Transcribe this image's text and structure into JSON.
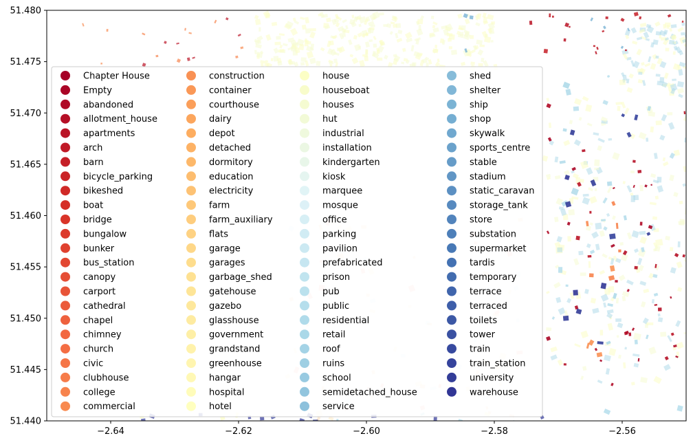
{
  "chart_data": {
    "type": "scatter",
    "title": "",
    "xlabel": "",
    "ylabel": "",
    "xlim": [
      -2.65,
      -2.55
    ],
    "ylim": [
      51.44,
      51.48
    ],
    "xticks": [
      -2.64,
      -2.62,
      -2.6,
      -2.58,
      -2.56
    ],
    "yticks": [
      51.44,
      51.445,
      51.45,
      51.455,
      51.46,
      51.465,
      51.47,
      51.475,
      51.48
    ],
    "xtick_labels": [
      "−2.64",
      "−2.62",
      "−2.60",
      "−2.58",
      "−2.56"
    ],
    "ytick_labels": [
      "51.440",
      "51.445",
      "51.450",
      "51.455",
      "51.460",
      "51.465",
      "51.470",
      "51.475",
      "51.480"
    ],
    "grid": false,
    "colormap": "RdYlBu",
    "legend": {
      "placement": "lower-left",
      "columns": 4,
      "entries": [
        "Chapter House",
        "Empty",
        "abandoned",
        "allotment_house",
        "apartments",
        "arch",
        "barn",
        "bicycle_parking",
        "bikeshed",
        "boat",
        "bridge",
        "bungalow",
        "bunker",
        "bus_station",
        "canopy",
        "carport",
        "cathedral",
        "chapel",
        "chimney",
        "church",
        "civic",
        "clubhouse",
        "college",
        "commercial",
        "construction",
        "container",
        "courthouse",
        "dairy",
        "depot",
        "detached",
        "dormitory",
        "education",
        "electricity",
        "farm",
        "farm_auxiliary",
        "flats",
        "garage",
        "garages",
        "garbage_shed",
        "gatehouse",
        "gazebo",
        "glasshouse",
        "government",
        "grandstand",
        "greenhouse",
        "hangar",
        "hospital",
        "hotel",
        "house",
        "houseboat",
        "houses",
        "hut",
        "industrial",
        "installation",
        "kindergarten",
        "kiosk",
        "marquee",
        "mosque",
        "office",
        "parking",
        "pavilion",
        "prefabricated",
        "prison",
        "pub",
        "public",
        "residential",
        "retail",
        "roof",
        "ruins",
        "school",
        "semidetached_house",
        "service",
        "shed",
        "shelter",
        "ship",
        "shop",
        "skywalk",
        "sports_centre",
        "stable",
        "stadium",
        "static_caravan",
        "storage_tank",
        "store",
        "substation",
        "supermarket",
        "tardis",
        "temporary",
        "terrace",
        "terraced",
        "toilets",
        "tower",
        "train",
        "train_station",
        "university",
        "warehouse"
      ],
      "column_sizes": [
        24,
        24,
        24,
        23
      ]
    },
    "map_features": {
      "description": "building footprints of Bristol area colored by building type"
    }
  }
}
